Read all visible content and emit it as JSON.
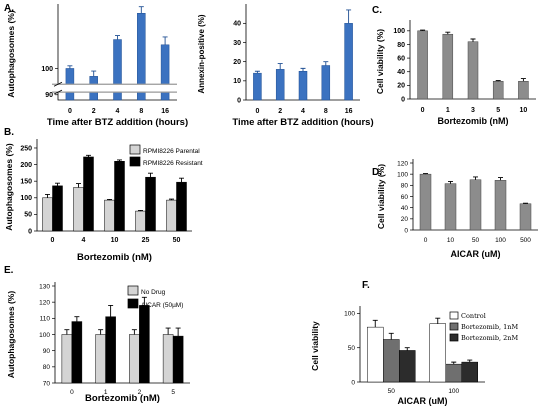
{
  "chart_data": [
    {
      "id": "A1",
      "panel_label": "A.",
      "type": "bar",
      "categories": [
        "0",
        "2",
        "4",
        "8",
        "16"
      ],
      "values": [
        100,
        97,
        111,
        121,
        109
      ],
      "errors": [
        1,
        2,
        1.5,
        2.5,
        3
      ],
      "ylabel": "Autophagosomes (%)",
      "xlabel": "Time after BTZ addition (hours)",
      "ylim": [
        88,
        123
      ],
      "ybreak": [
        91,
        94
      ],
      "yticks": [
        90,
        100
      ],
      "series_colors": [
        "#3b72c0"
      ]
    },
    {
      "id": "A2",
      "panel_label": "",
      "type": "bar",
      "categories": [
        "0",
        "2",
        "4",
        "8",
        "16"
      ],
      "values": [
        14,
        16,
        15,
        18,
        40
      ],
      "errors": [
        1,
        3,
        1.5,
        2,
        7
      ],
      "ylabel": "Annexin-positive (%)",
      "xlabel": "Time after BTZ addition (hours)",
      "ylim": [
        0,
        48
      ],
      "yticks": [
        0,
        10,
        20,
        30,
        40
      ],
      "series_colors": [
        "#3b72c0"
      ]
    },
    {
      "id": "C",
      "panel_label": "C.",
      "type": "bar",
      "categories": [
        "0",
        "1",
        "3",
        "5",
        "10"
      ],
      "values": [
        100,
        95,
        84,
        26,
        26
      ],
      "errors": [
        1,
        3,
        4,
        1,
        4
      ],
      "ylabel": "Cell viability (%)",
      "xlabel": "Bortezomib (nM)",
      "ylim": [
        0,
        110
      ],
      "yticks": [
        0,
        20,
        40,
        60,
        80,
        100
      ],
      "series_colors": [
        "#8c8c8c"
      ]
    },
    {
      "id": "B",
      "panel_label": "B.",
      "type": "bar",
      "categories": [
        "0",
        "4",
        "10",
        "25",
        "50"
      ],
      "series": [
        {
          "name": "RPMI8226 Parental",
          "values": [
            100,
            131,
            93,
            60,
            93
          ],
          "errors": [
            10,
            12,
            2,
            2,
            3
          ],
          "color": "#d4d4d4"
        },
        {
          "name": "RPMI8226 Resistant",
          "values": [
            136,
            223,
            210,
            162,
            147
          ],
          "errors": [
            8,
            5,
            4,
            12,
            12
          ],
          "color": "#000000"
        }
      ],
      "ylabel": "Autophagosomes (%)",
      "xlabel": "Bortezomib (nM)",
      "ylim": [
        0,
        265
      ],
      "yticks": [
        0,
        50,
        100,
        150,
        200,
        250
      ],
      "legend": "top-right"
    },
    {
      "id": "D",
      "panel_label": "D.",
      "type": "bar",
      "categories": [
        "0",
        "10",
        "50",
        "100",
        "500"
      ],
      "values": [
        100,
        83,
        90,
        89,
        47
      ],
      "errors": [
        1,
        4,
        5,
        5,
        1
      ],
      "ylabel": "Cell viability (%)",
      "xlabel": "AICAR (uM)",
      "ylim": [
        0,
        120
      ],
      "yticks": [
        0,
        20,
        40,
        60,
        80,
        100,
        120
      ],
      "series_colors": [
        "#8c8c8c"
      ]
    },
    {
      "id": "E",
      "panel_label": "E.",
      "type": "bar",
      "categories": [
        "0",
        "1",
        "2",
        "5"
      ],
      "series": [
        {
          "name": "No Drug",
          "values": [
            100,
            100,
            100,
            100
          ],
          "errors": [
            3,
            3,
            3,
            4
          ],
          "color": "#d4d4d4"
        },
        {
          "name": "AICAR (50µM)",
          "values": [
            108,
            111,
            118,
            99
          ],
          "errors": [
            3,
            7,
            5,
            5
          ],
          "color": "#000000"
        }
      ],
      "ylabel": "Autophagosomes (%)",
      "xlabel": "Bortezomib (nM)",
      "ylim": [
        70,
        130
      ],
      "yticks": [
        70,
        80,
        90,
        100,
        110,
        120,
        130
      ],
      "legend": "top-right"
    },
    {
      "id": "F",
      "panel_label": "F.",
      "type": "bar",
      "categories": [
        "50",
        "100"
      ],
      "series": [
        {
          "name": "Control",
          "values": [
            80,
            85
          ],
          "errors": [
            10,
            8
          ],
          "color": "#ffffff"
        },
        {
          "name": "Bortezomib, 1nM",
          "values": [
            62,
            26
          ],
          "errors": [
            9,
            3
          ],
          "color": "#6f6f6f"
        },
        {
          "name": "Bortezomib, 2nM",
          "values": [
            46,
            29
          ],
          "errors": [
            4,
            3
          ],
          "color": "#2c2c2c"
        }
      ],
      "ylabel": "Cell viability",
      "xlabel": "AICAR (uM)",
      "ylim": [
        0,
        105
      ],
      "yticks": [
        0,
        50,
        100
      ],
      "legend": "top-right"
    }
  ]
}
